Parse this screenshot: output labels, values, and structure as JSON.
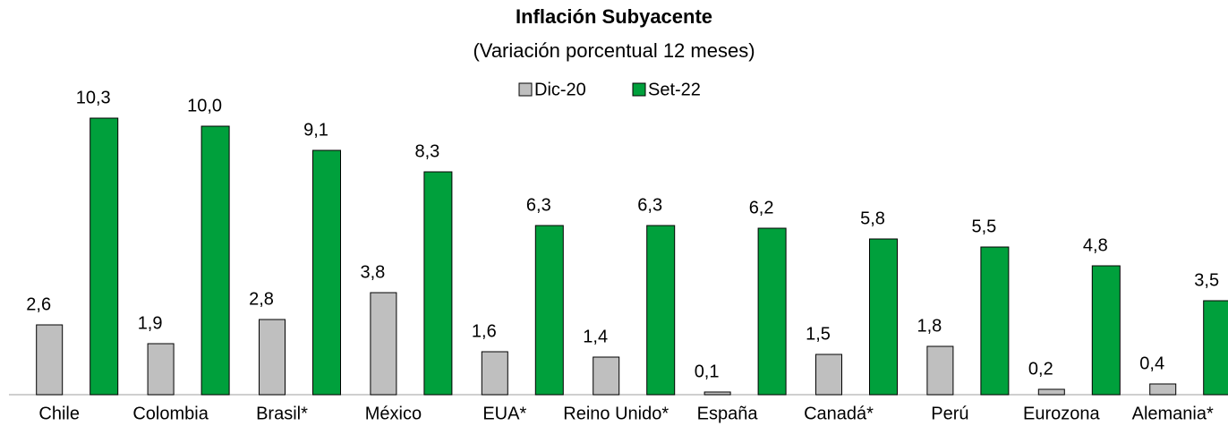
{
  "chart_data": {
    "type": "bar",
    "title": "Inflación Subyacente",
    "subtitle": "(Variación porcentual 12 meses)",
    "categories": [
      "Chile",
      "Colombia",
      "Brasil*",
      "México",
      "EUA*",
      "Reino Unido*",
      "España",
      "Canadá*",
      "Perú",
      "Eurozona",
      "Alemania*"
    ],
    "series": [
      {
        "name": "Dic-20",
        "color": "#bfbfbf",
        "values": [
          2.6,
          1.9,
          2.8,
          3.8,
          1.6,
          1.4,
          0.1,
          1.5,
          1.8,
          0.2,
          0.4
        ],
        "value_labels": [
          "2,6",
          "1,9",
          "2,8",
          "3,8",
          "1,6",
          "1,4",
          "0,1",
          "1,5",
          "1,8",
          "0,2",
          "0,4"
        ]
      },
      {
        "name": "Set-22",
        "color": "#00a03c",
        "values": [
          10.3,
          10.0,
          9.1,
          8.3,
          6.3,
          6.3,
          6.2,
          5.8,
          5.5,
          4.8,
          3.5
        ],
        "value_labels": [
          "10,3",
          "10,0",
          "9,1",
          "8,3",
          "6,3",
          "6,3",
          "6,2",
          "5,8",
          "5,5",
          "4,8",
          "3,5"
        ]
      }
    ],
    "ylim": [
      0,
      14.7
    ],
    "legend": "top"
  }
}
